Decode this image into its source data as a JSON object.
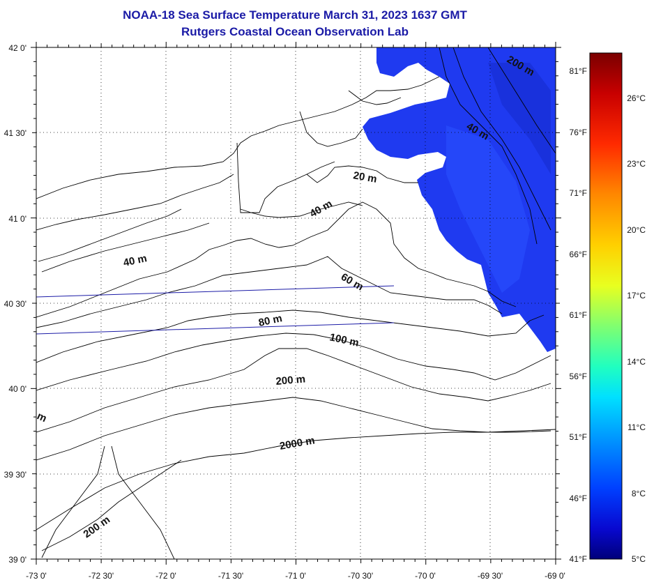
{
  "title": {
    "line1": "NOAA-18 Sea Surface Temperature March 31, 2023 1637 GMT",
    "line2": "Rutgers Coastal Ocean Observation Lab"
  },
  "axes": {
    "x_labels": [
      "-73 0'",
      "-72 30'",
      "-72 0'",
      "-71 30'",
      "-71 0'",
      "-70 30'",
      "-70 0'",
      "-69 30'",
      "-69 0'"
    ],
    "y_labels": [
      "42 0'",
      "41 30'",
      "41 0'",
      "40 30'",
      "40 0'",
      "39 30'",
      "39 0'"
    ],
    "lon_range": [
      -73,
      -69
    ],
    "lat_range": [
      39,
      42
    ]
  },
  "contour_labels": [
    {
      "text": "20 m"
    },
    {
      "text": "40 m"
    },
    {
      "text": "40 m"
    },
    {
      "text": "40 m"
    },
    {
      "text": "60 m"
    },
    {
      "text": "80 m"
    },
    {
      "text": "100 m"
    },
    {
      "text": "200 m"
    },
    {
      "text": "200 m"
    },
    {
      "text": "200 m"
    },
    {
      "text": "2000 m"
    },
    {
      "text": "m"
    }
  ],
  "colorbar": {
    "fahrenheit": [
      "81°F",
      "76°F",
      "71°F",
      "66°F",
      "61°F",
      "56°F",
      "51°F",
      "46°F",
      "41°F"
    ],
    "celsius": [
      "26°C",
      "23°C",
      "20°C",
      "17°C",
      "14°C",
      "11°C",
      "8°C",
      "5°C"
    ],
    "colors": [
      "#7a0000",
      "#d40000",
      "#ff4a00",
      "#ff9a00",
      "#ffd800",
      "#e8ff20",
      "#90ff60",
      "#30ffb0",
      "#00e0ff",
      "#00a0ff",
      "#0050ff",
      "#1010e0",
      "#00007a"
    ]
  },
  "colors": {
    "title": "#1a1aa6",
    "sst_cold": "#1e3cf0",
    "contour": "#000000"
  }
}
